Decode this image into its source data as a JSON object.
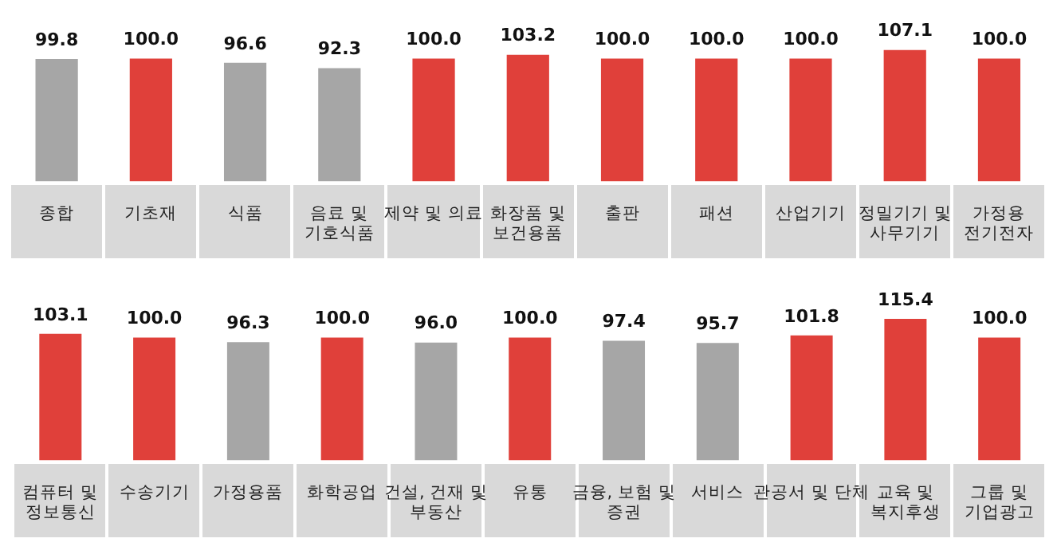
{
  "chart_data": [
    {
      "type": "bar",
      "categories": [
        "종합",
        "기초재",
        "식품",
        "음료 및\n기호식품",
        "제약 및 의료",
        "화장품 및\n보건용품",
        "출판",
        "패션",
        "산업기기",
        "정밀기기 및\n사무기기",
        "가정용\n전기전자"
      ],
      "values": [
        99.8,
        100,
        96.6,
        92.3,
        100,
        103.2,
        100,
        100,
        100,
        107.1,
        100
      ],
      "value_labels": [
        "99.8",
        "100.0",
        "96.6",
        "92.3",
        "100.0",
        "103.2",
        "100.0",
        "100.0",
        "100.0",
        "107.1",
        "100.0"
      ],
      "colors": [
        "#a6a6a6",
        "#e0403a",
        "#a6a6a6",
        "#a6a6a6",
        "#e0403a",
        "#e0403a",
        "#e0403a",
        "#e0403a",
        "#e0403a",
        "#e0403a",
        "#e0403a"
      ],
      "grid": false,
      "legend": false,
      "tick_labels": "x"
    },
    {
      "type": "bar",
      "categories": [
        "컴퓨터 및\n정보통신",
        "수송기기",
        "가정용품",
        "화학공업",
        "건설, 건재 및\n부동산",
        "유통",
        "금융, 보험 및\n증권",
        "서비스",
        "관공서 및 단체",
        "교육 및\n복지후생",
        "그룹 및\n기업광고"
      ],
      "values": [
        103.1,
        100,
        96.3,
        100,
        96,
        100,
        97.4,
        95.7,
        101.8,
        115.4,
        100
      ],
      "value_labels": [
        "103.1",
        "100.0",
        "96.3",
        "100.0",
        "96.0",
        "100.0",
        "97.4",
        "95.7",
        "101.8",
        "115.4",
        "100.0"
      ],
      "colors": [
        "#e0403a",
        "#e0403a",
        "#a6a6a6",
        "#e0403a",
        "#a6a6a6",
        "#e0403a",
        "#a6a6a6",
        "#a6a6a6",
        "#e0403a",
        "#e0403a",
        "#e0403a"
      ],
      "grid": false,
      "legend": false,
      "tick_labels": "x"
    }
  ]
}
